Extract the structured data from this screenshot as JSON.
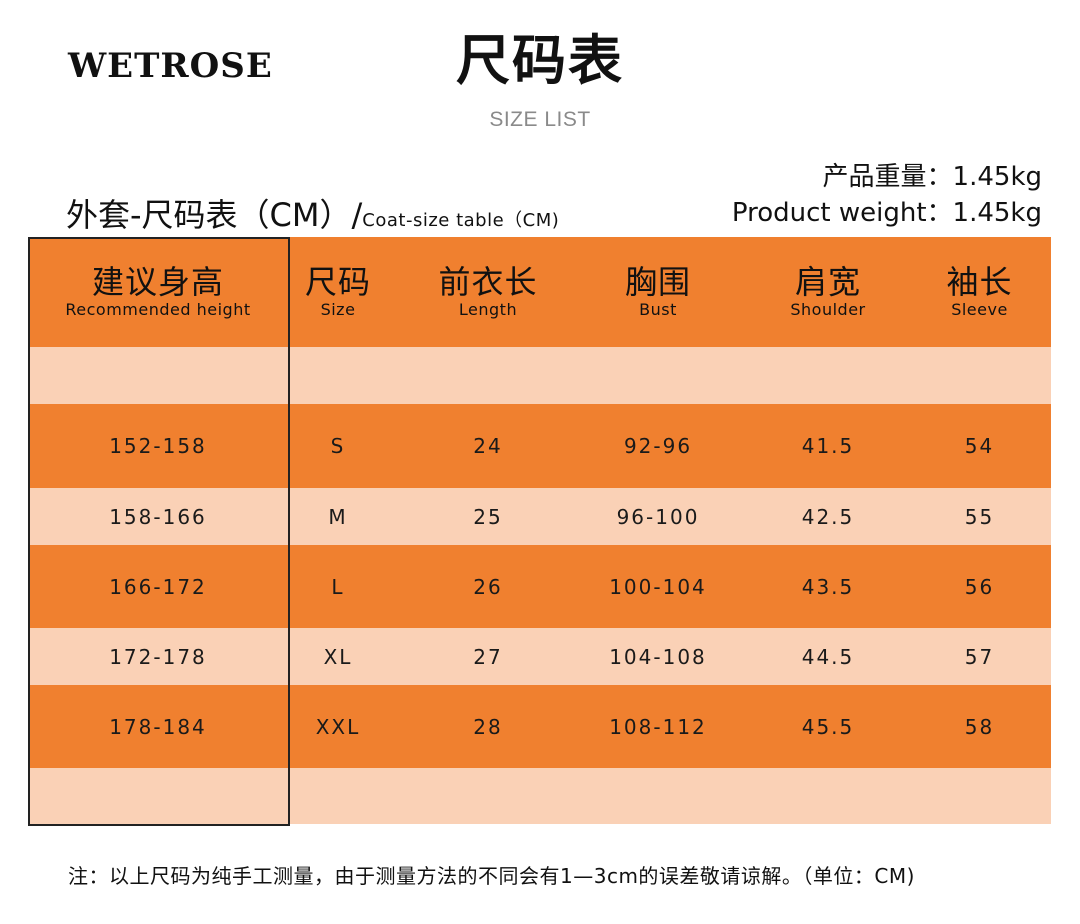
{
  "brand": "WETROSE",
  "title": "尺码表",
  "subtitle": "SIZE LIST",
  "weight": {
    "cn": "产品重量：1.45kg",
    "en": "Product weight：1.45kg"
  },
  "table_caption": {
    "main": "外套-尺码表（CM）/",
    "en": "Coat-size table（CM)"
  },
  "colors": {
    "orange": "#f0802f",
    "peach": "#fad1b6"
  },
  "headers": [
    {
      "cn": "建议身高",
      "en": "Recommended height"
    },
    {
      "cn": "尺码",
      "en": "Size"
    },
    {
      "cn": "前衣长",
      "en": "Length"
    },
    {
      "cn": "胸围",
      "en": "Bust"
    },
    {
      "cn": "肩宽",
      "en": "Shoulder"
    },
    {
      "cn": "袖长",
      "en": "Sleeve"
    }
  ],
  "rows": [
    [
      "",
      "",
      "",
      "",
      "",
      ""
    ],
    [
      "152-158",
      "S",
      "24",
      "92-96",
      "41.5",
      "54"
    ],
    [
      "158-166",
      "M",
      "25",
      "96-100",
      "42.5",
      "55"
    ],
    [
      "166-172",
      "L",
      "26",
      "100-104",
      "43.5",
      "56"
    ],
    [
      "172-178",
      "XL",
      "27",
      "104-108",
      "44.5",
      "57"
    ],
    [
      "178-184",
      "XXL",
      "28",
      "108-112",
      "45.5",
      "58"
    ],
    [
      "",
      "",
      "",
      "",
      "",
      ""
    ]
  ],
  "note": "注：以上尺码为纯手工测量，由于测量方法的不同会有1—3cm的误差敬请谅解。（单位：CM)"
}
